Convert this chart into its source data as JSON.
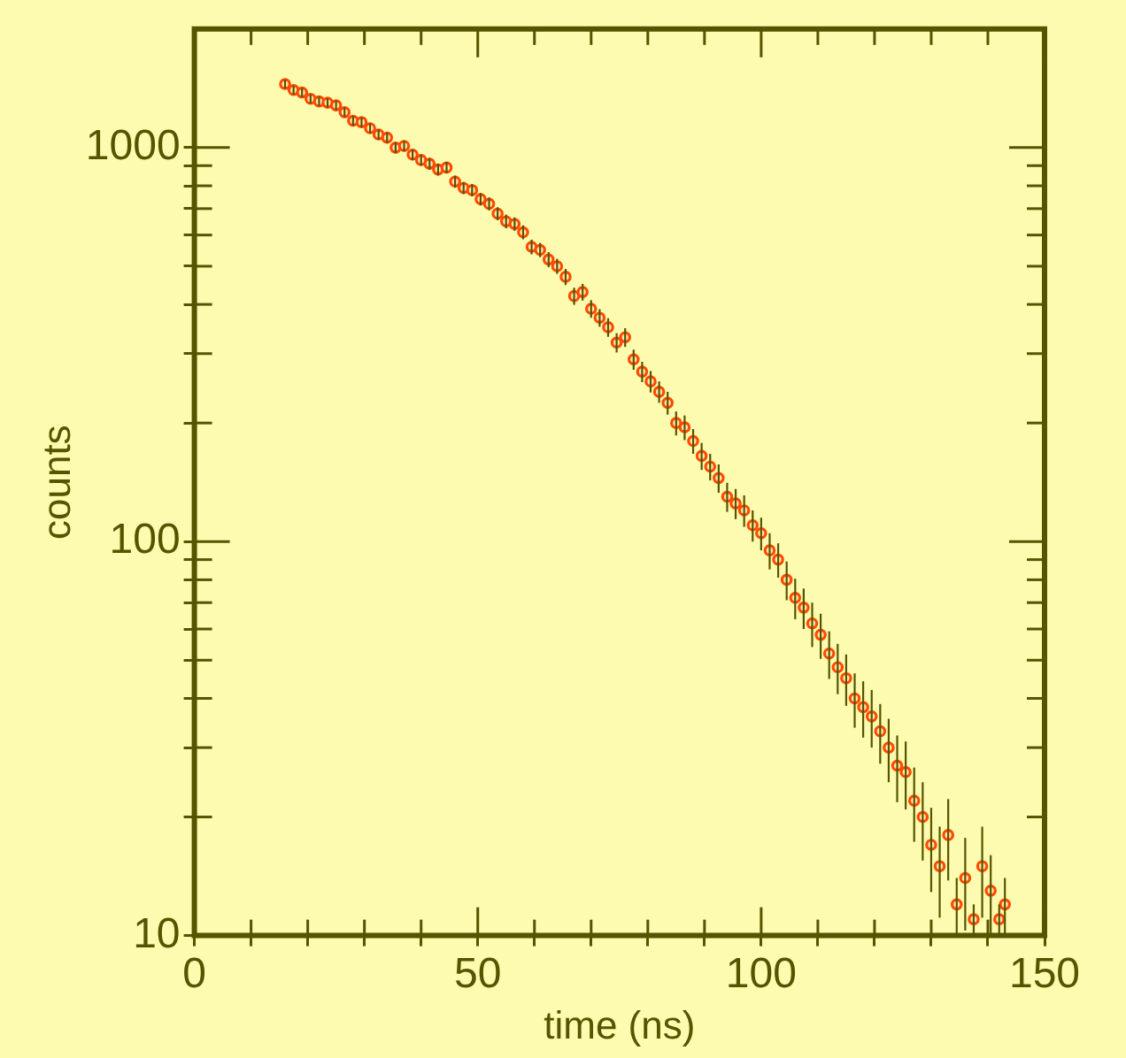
{
  "chart_data": {
    "type": "scatter",
    "xlabel": "time (ns)",
    "ylabel": "counts",
    "log": "y",
    "grid": false,
    "legend": false,
    "marker": "circle",
    "xlim": [
      0,
      150
    ],
    "ylim": [
      10,
      2000
    ],
    "xticks": [
      0,
      {
        "value": 10,
        "label": null
      },
      {
        "value": 20,
        "label": null
      },
      {
        "value": 30,
        "label": null
      },
      {
        "value": 40,
        "label": null
      },
      50,
      {
        "value": 60,
        "label": null
      },
      {
        "value": 70,
        "label": null
      },
      {
        "value": 80,
        "label": null
      },
      {
        "value": 90,
        "label": null
      },
      100,
      {
        "value": 110,
        "label": null
      },
      {
        "value": 120,
        "label": null
      },
      {
        "value": 130,
        "label": null
      },
      {
        "value": 140,
        "label": null
      },
      150
    ],
    "yticks": [
      10,
      {
        "value": 20,
        "label": null
      },
      {
        "value": 30,
        "label": null
      },
      {
        "value": 40,
        "label": null
      },
      {
        "value": 50,
        "label": null
      },
      {
        "value": 60,
        "label": null
      },
      {
        "value": 70,
        "label": null
      },
      {
        "value": 80,
        "label": null
      },
      {
        "value": 90,
        "label": null
      },
      100,
      {
        "value": 200,
        "label": null
      },
      {
        "value": 300,
        "label": null
      },
      {
        "value": 400,
        "label": null
      },
      {
        "value": 500,
        "label": null
      },
      {
        "value": 600,
        "label": null
      },
      {
        "value": 700,
        "label": null
      },
      {
        "value": 800,
        "label": null
      },
      {
        "value": 900,
        "label": null
      },
      1000
    ],
    "series": [
      {
        "color": "#ff4a00",
        "x": [
          16,
          17.5,
          19,
          20.5,
          22,
          23.5,
          25,
          26.5,
          28,
          29.5,
          31,
          32.5,
          34,
          35.5,
          37,
          38.5,
          40,
          41.5,
          43,
          44.5,
          46,
          47.5,
          49,
          50.5,
          52,
          53.5,
          55,
          56.5,
          58,
          59.5,
          61,
          62.5,
          64,
          65.5,
          67,
          68.5,
          70,
          71.5,
          73,
          74.5,
          76,
          77.5,
          79,
          80.5,
          82,
          83.5,
          85,
          86.5,
          88,
          89.5,
          91,
          92.5,
          94,
          95.5,
          97,
          98.5,
          100,
          101.5,
          103,
          104.5,
          106,
          107.5,
          109,
          110.5,
          112,
          113.5,
          115,
          116.5,
          118,
          119.5,
          121,
          122.5,
          124,
          125.5,
          127,
          128.5,
          130,
          131.5,
          133,
          134.5,
          136,
          137.5,
          139,
          140.5,
          142,
          143
        ],
        "values": [
          1450,
          1400,
          1380,
          1330,
          1310,
          1300,
          1280,
          1230,
          1170,
          1160,
          1120,
          1080,
          1060,
          1000,
          1010,
          960,
          930,
          910,
          880,
          890,
          820,
          790,
          780,
          740,
          720,
          680,
          650,
          640,
          610,
          560,
          550,
          520,
          500,
          470,
          420,
          430,
          390,
          370,
          350,
          320,
          330,
          290,
          270,
          255,
          240,
          225,
          200,
          195,
          180,
          165,
          155,
          145,
          130,
          125,
          120,
          110,
          105,
          95,
          90,
          80,
          72,
          68,
          62,
          58,
          52,
          48,
          45,
          40,
          38,
          36,
          33,
          30,
          27,
          26,
          22,
          20,
          17,
          15,
          18,
          12,
          14,
          11,
          15,
          13,
          11,
          12
        ],
        "errors": [
          38,
          37,
          37,
          36,
          36,
          36,
          36,
          35,
          34,
          34,
          33,
          33,
          33,
          32,
          32,
          31,
          30,
          30,
          30,
          30,
          29,
          28,
          28,
          27,
          27,
          26,
          26,
          25,
          25,
          24,
          23,
          23,
          22,
          22,
          21,
          21,
          20,
          19,
          19,
          18,
          18,
          17,
          16,
          16,
          15,
          15,
          14,
          14,
          13,
          13,
          12,
          12,
          11,
          11,
          11,
          10,
          10,
          10,
          9,
          9,
          8.5,
          8,
          8,
          7.6,
          7.2,
          7,
          6.7,
          6.3,
          6.2,
          6,
          5.7,
          5.5,
          5.2,
          5.1,
          4.7,
          4.5,
          4.1,
          3.9,
          4.2,
          2,
          3.7,
          1,
          3.9,
          3,
          1,
          2
        ]
      }
    ]
  }
}
